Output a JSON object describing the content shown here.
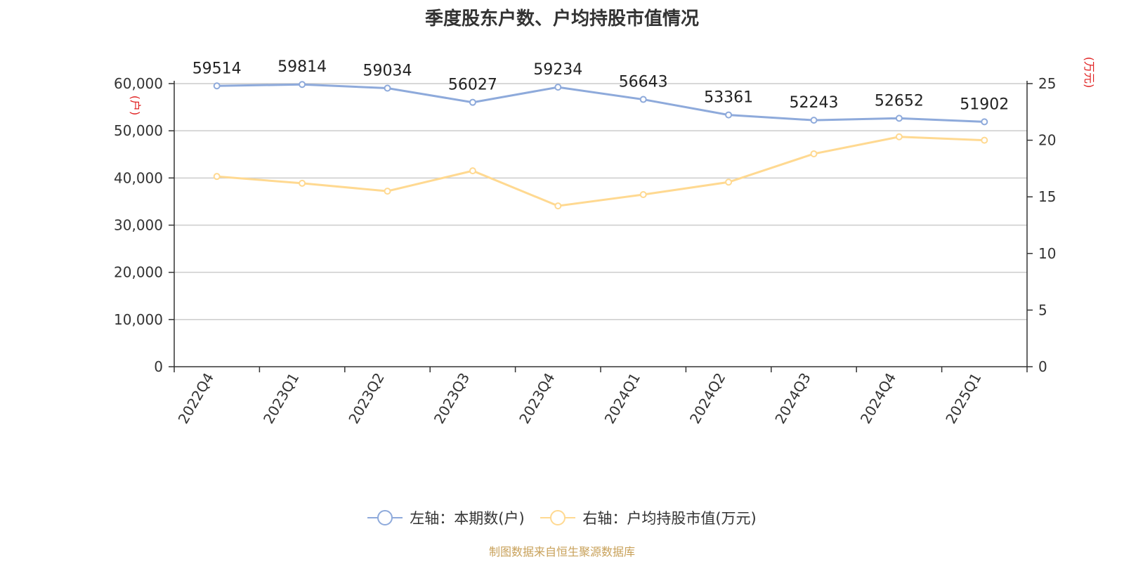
{
  "chart_data": {
    "type": "line",
    "title": "季度股东户数、户均持股市值情况",
    "categories": [
      "2022Q4",
      "2023Q1",
      "2023Q2",
      "2023Q3",
      "2023Q4",
      "2024Q1",
      "2024Q2",
      "2024Q3",
      "2024Q4",
      "2025Q1"
    ],
    "series": [
      {
        "name": "左轴：本期数(户)",
        "axis": "left",
        "color": "#8eaadb",
        "values": [
          59514,
          59814,
          59034,
          56027,
          59234,
          56643,
          53361,
          52243,
          52652,
          51902
        ]
      },
      {
        "name": "右轴：户均持股市值(万元)",
        "axis": "right",
        "color": "#ffd991",
        "values": [
          16.8,
          16.2,
          15.5,
          17.3,
          14.2,
          15.2,
          16.3,
          18.8,
          20.3,
          20.0
        ]
      }
    ],
    "left_axis": {
      "label": "(户)",
      "ylim": [
        0,
        60000
      ],
      "ticks": [
        "0",
        "10,000",
        "20,000",
        "30,000",
        "40,000",
        "50,000",
        "60,000"
      ]
    },
    "right_axis": {
      "label": "(万元)",
      "ylim": [
        0,
        25
      ],
      "ticks": [
        "0",
        "5",
        "10",
        "15",
        "20",
        "25"
      ]
    },
    "grid": true,
    "legend_position": "bottom",
    "axis_label_color": "#e02020"
  },
  "source_text": "制图数据来自恒生聚源数据库"
}
